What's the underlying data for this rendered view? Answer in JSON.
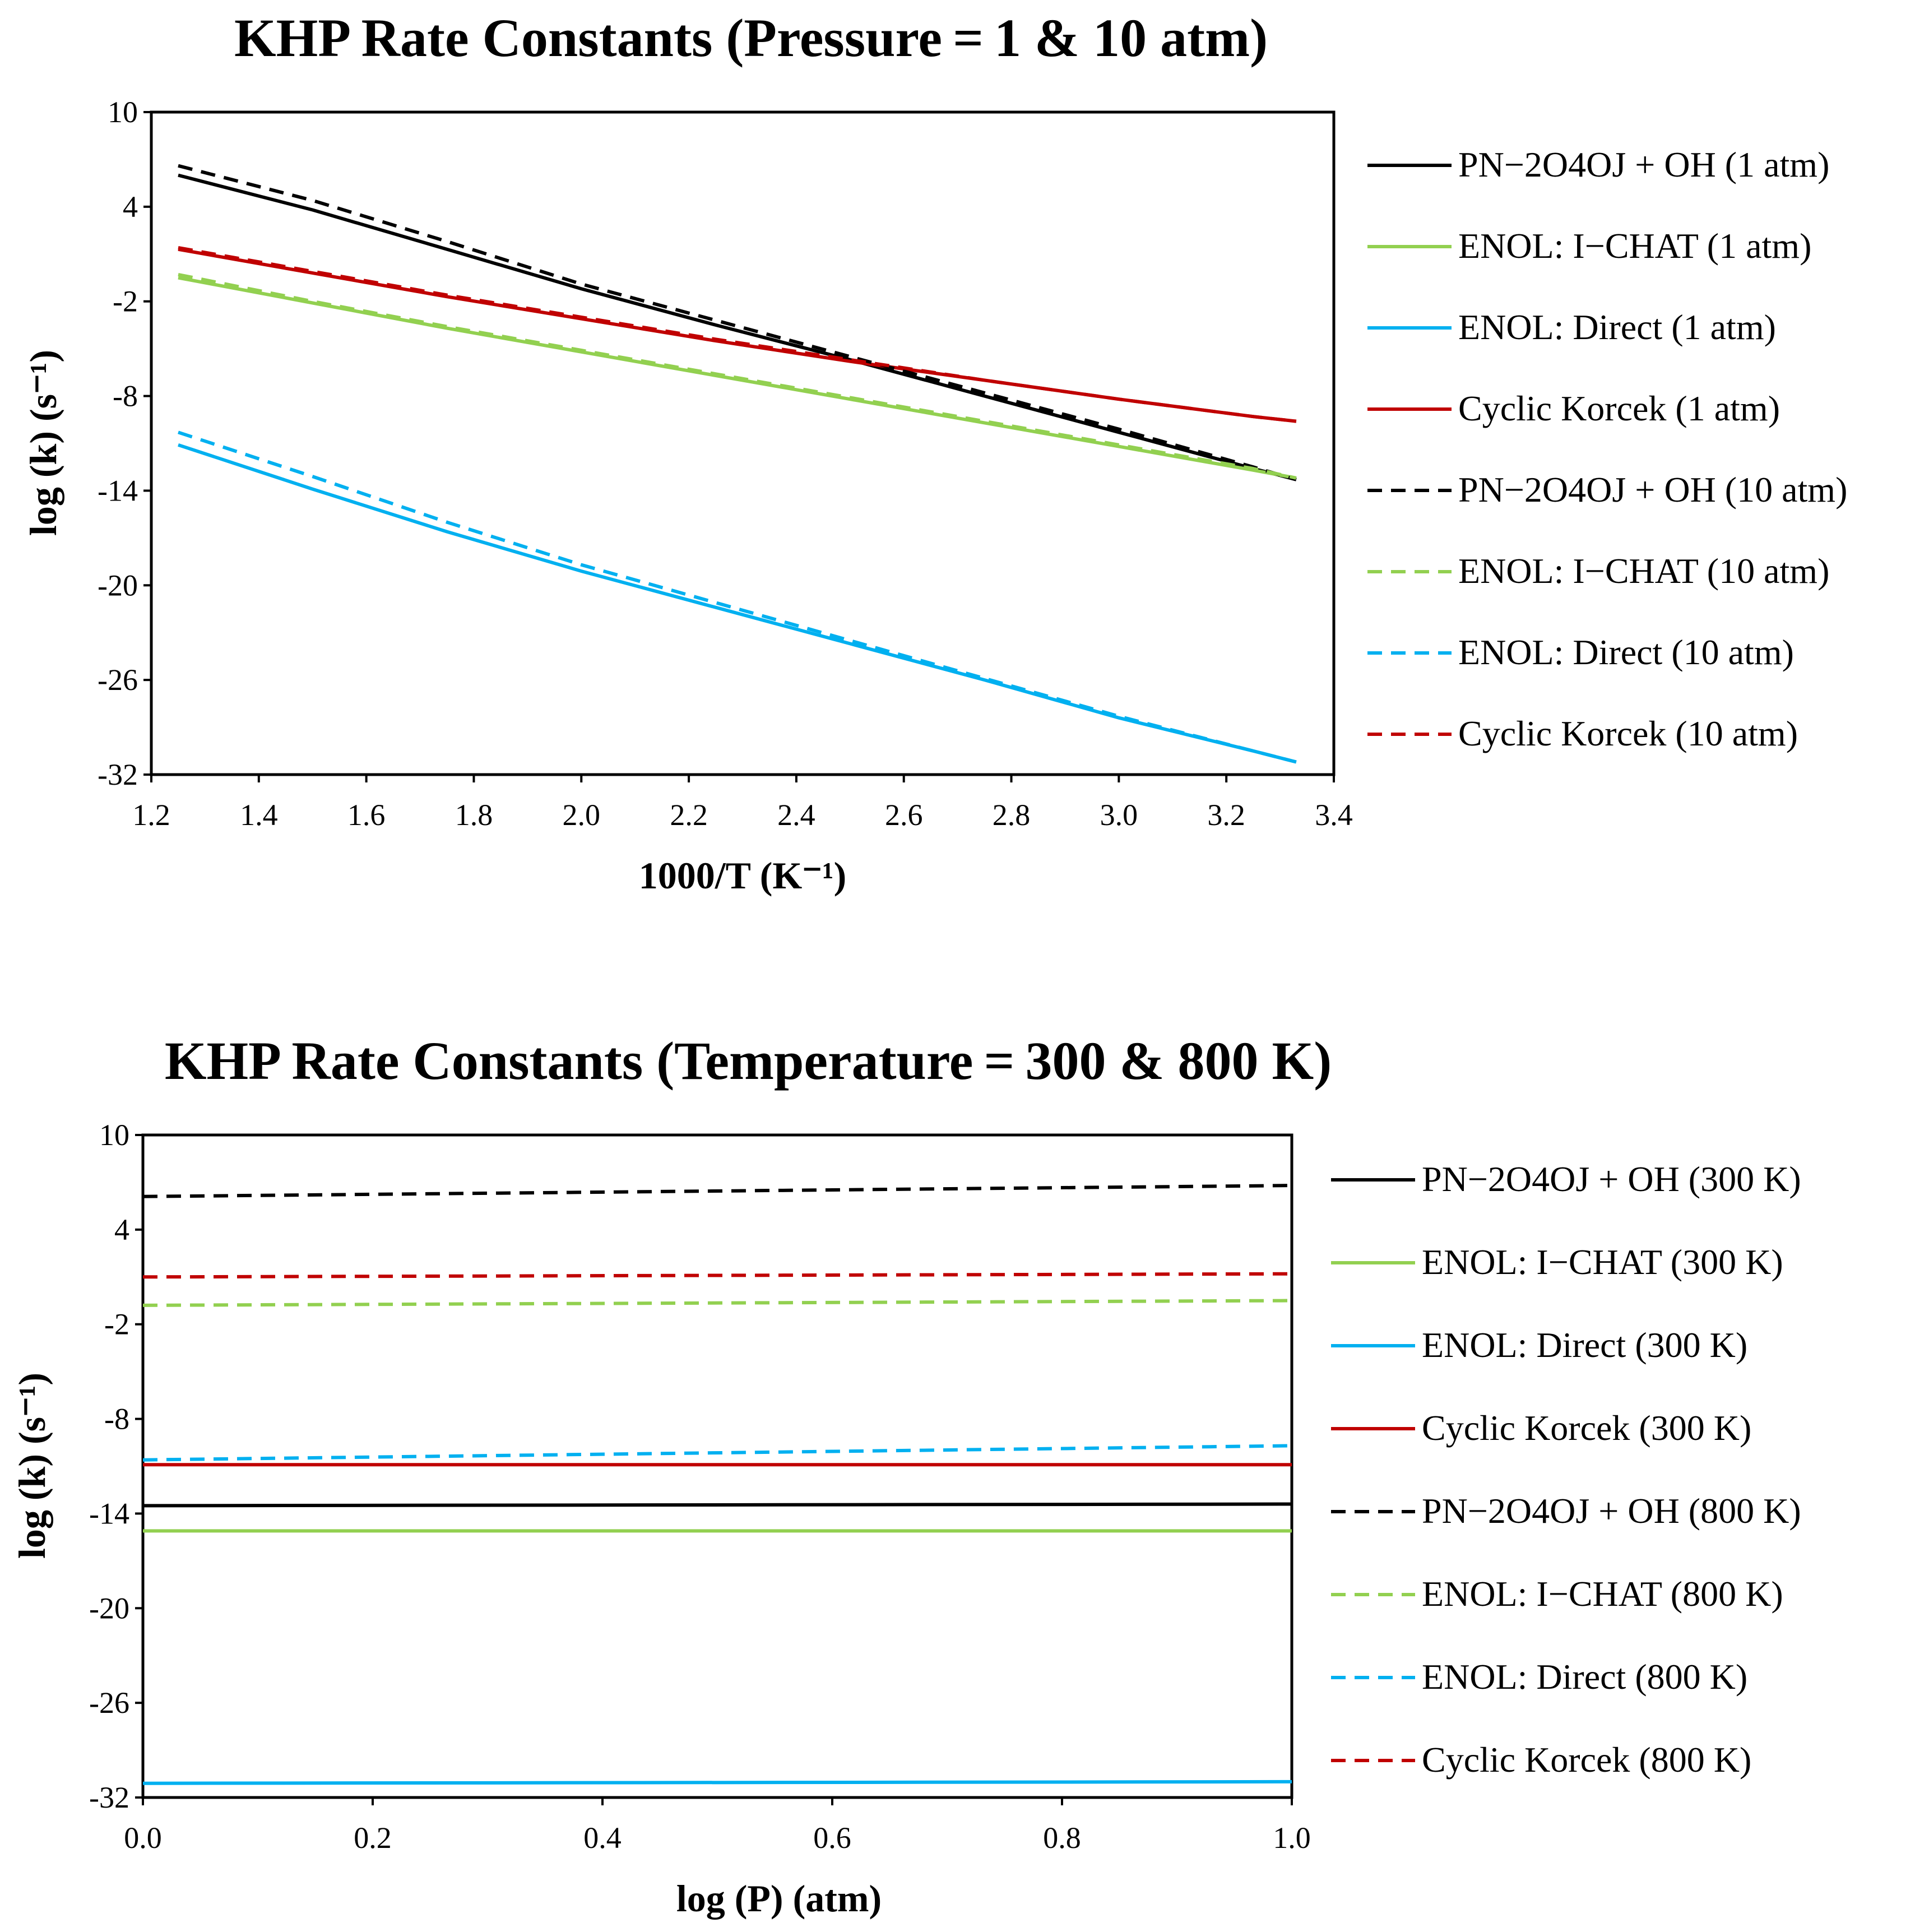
{
  "chart_data": [
    {
      "type": "line",
      "title": "KHP Rate Constants (Pressure = 1 & 10 atm)",
      "xlabel": "1000/T (K⁻¹)",
      "ylabel": "log (k) (s⁻¹)",
      "xlim": [
        1.2,
        3.4
      ],
      "ylim": [
        -32,
        10
      ],
      "xticks": [
        1.2,
        1.4,
        1.6,
        1.8,
        2.0,
        2.2,
        2.4,
        2.6,
        2.8,
        3.0,
        3.2,
        3.4
      ],
      "xtick_labels": [
        "1.2",
        "1.4",
        "1.6",
        "1.8",
        "2.0",
        "2.2",
        "2.4",
        "2.6",
        "2.8",
        "3.0",
        "3.2",
        "3.4"
      ],
      "yticks": [
        10,
        4,
        -2,
        -8,
        -14,
        -20,
        -26,
        -32
      ],
      "ytick_labels": [
        "10",
        "4",
        "-2",
        "-8",
        "-14",
        "-20",
        "-26",
        "-32"
      ],
      "legend_position": "right",
      "series": [
        {
          "name": "PN−2O4OJ + OH (1 atm)",
          "color": "#000000",
          "dash": "solid",
          "x": [
            1.25,
            1.5,
            1.75,
            2.0,
            2.25,
            2.5,
            2.75,
            3.0,
            3.25,
            3.33
          ],
          "y": [
            6.0,
            3.8,
            1.3,
            -1.2,
            -3.5,
            -5.7,
            -8.0,
            -10.3,
            -12.6,
            -13.3
          ]
        },
        {
          "name": "ENOL: I−CHAT (1 atm)",
          "color": "#92d050",
          "dash": "solid",
          "x": [
            1.25,
            1.5,
            1.75,
            2.0,
            2.25,
            2.5,
            2.75,
            3.0,
            3.25,
            3.33
          ],
          "y": [
            -0.5,
            -2.1,
            -3.7,
            -5.2,
            -6.7,
            -8.2,
            -9.7,
            -11.2,
            -12.7,
            -13.2
          ]
        },
        {
          "name": "ENOL: Direct (1 atm)",
          "color": "#00b0f0",
          "dash": "solid",
          "x": [
            1.25,
            1.5,
            1.75,
            2.0,
            2.25,
            2.5,
            2.75,
            3.0,
            3.25,
            3.33
          ],
          "y": [
            -11.1,
            -13.9,
            -16.6,
            -19.1,
            -21.4,
            -23.7,
            -26.0,
            -28.4,
            -30.5,
            -31.2
          ]
        },
        {
          "name": "Cyclic Korcek (1 atm)",
          "color": "#c00000",
          "dash": "solid",
          "x": [
            1.25,
            1.5,
            1.75,
            2.0,
            2.25,
            2.5,
            2.75,
            3.0,
            3.25,
            3.33
          ],
          "y": [
            1.3,
            -0.2,
            -1.7,
            -3.1,
            -4.5,
            -5.8,
            -7.0,
            -8.2,
            -9.3,
            -9.6
          ]
        },
        {
          "name": "PN−2O4OJ + OH (10 atm)",
          "color": "#000000",
          "dash": "dashed",
          "x": [
            1.25,
            1.5,
            1.75,
            2.0,
            2.25,
            2.5,
            2.75,
            3.0,
            3.25,
            3.33
          ],
          "y": [
            6.6,
            4.4,
            1.8,
            -0.9,
            -3.2,
            -5.5,
            -7.8,
            -10.1,
            -12.5,
            -13.3
          ]
        },
        {
          "name": "ENOL: I−CHAT (10 atm)",
          "color": "#92d050",
          "dash": "dashed",
          "x": [
            1.25,
            1.5,
            1.75,
            2.0,
            2.25,
            2.5,
            2.75,
            3.0,
            3.25,
            3.33
          ],
          "y": [
            -0.3,
            -2.0,
            -3.6,
            -5.1,
            -6.6,
            -8.1,
            -9.6,
            -11.1,
            -12.6,
            -13.2
          ]
        },
        {
          "name": "ENOL: Direct (10 atm)",
          "color": "#00b0f0",
          "dash": "dashed",
          "x": [
            1.25,
            1.5,
            1.75,
            2.0,
            2.25,
            2.5,
            2.75,
            3.0,
            3.25,
            3.33
          ],
          "y": [
            -10.3,
            -13.1,
            -16.0,
            -18.7,
            -21.1,
            -23.5,
            -25.9,
            -28.3,
            -30.5,
            -31.2
          ]
        },
        {
          "name": "Cyclic Korcek (10 atm)",
          "color": "#c00000",
          "dash": "dashed",
          "x": [
            1.25,
            1.5,
            1.75,
            2.0,
            2.25,
            2.5,
            2.75,
            3.0,
            3.25,
            3.33
          ],
          "y": [
            1.4,
            -0.1,
            -1.6,
            -3.0,
            -4.4,
            -5.7,
            -7.0,
            -8.2,
            -9.3,
            -9.6
          ]
        }
      ]
    },
    {
      "type": "line",
      "title": "KHP Rate Constants (Temperature = 300 & 800 K)",
      "xlabel": "log (P) (atm)",
      "ylabel": "log (k) (s⁻¹)",
      "xlim": [
        0.0,
        1.0
      ],
      "ylim": [
        -32,
        10
      ],
      "xticks": [
        0.0,
        0.2,
        0.4,
        0.6,
        0.8,
        1.0
      ],
      "xtick_labels": [
        "0.0",
        "0.2",
        "0.4",
        "0.6",
        "0.8",
        "1.0"
      ],
      "yticks": [
        10,
        4,
        -2,
        -8,
        -14,
        -20,
        -26,
        -32
      ],
      "ytick_labels": [
        "10",
        "4",
        "-2",
        "-8",
        "-14",
        "-20",
        "-26",
        "-32"
      ],
      "legend_position": "right",
      "series": [
        {
          "name": "PN−2O4OJ + OH (300 K)",
          "color": "#000000",
          "dash": "solid",
          "x": [
            0.0,
            1.0
          ],
          "y": [
            -13.5,
            -13.4
          ]
        },
        {
          "name": "ENOL: I−CHAT (300 K)",
          "color": "#92d050",
          "dash": "solid",
          "x": [
            0.0,
            1.0
          ],
          "y": [
            -15.1,
            -15.1
          ]
        },
        {
          "name": "ENOL: Direct (300 K)",
          "color": "#00b0f0",
          "dash": "solid",
          "x": [
            0.0,
            1.0
          ],
          "y": [
            -31.1,
            -31.0
          ]
        },
        {
          "name": "Cyclic Korcek (300 K)",
          "color": "#c00000",
          "dash": "solid",
          "x": [
            0.0,
            1.0
          ],
          "y": [
            -10.9,
            -10.9
          ]
        },
        {
          "name": "PN−2O4OJ + OH (800 K)",
          "color": "#000000",
          "dash": "dashed",
          "x": [
            0.0,
            1.0
          ],
          "y": [
            6.1,
            6.8
          ]
        },
        {
          "name": "ENOL: I−CHAT (800 K)",
          "color": "#92d050",
          "dash": "dashed",
          "x": [
            0.0,
            1.0
          ],
          "y": [
            -0.8,
            -0.5
          ]
        },
        {
          "name": "ENOL: Direct (800 K)",
          "color": "#00b0f0",
          "dash": "dashed",
          "x": [
            0.0,
            1.0
          ],
          "y": [
            -10.6,
            -9.7
          ]
        },
        {
          "name": "Cyclic Korcek (800 K)",
          "color": "#c00000",
          "dash": "dashed",
          "x": [
            0.0,
            1.0
          ],
          "y": [
            1.0,
            1.2
          ]
        }
      ]
    }
  ]
}
